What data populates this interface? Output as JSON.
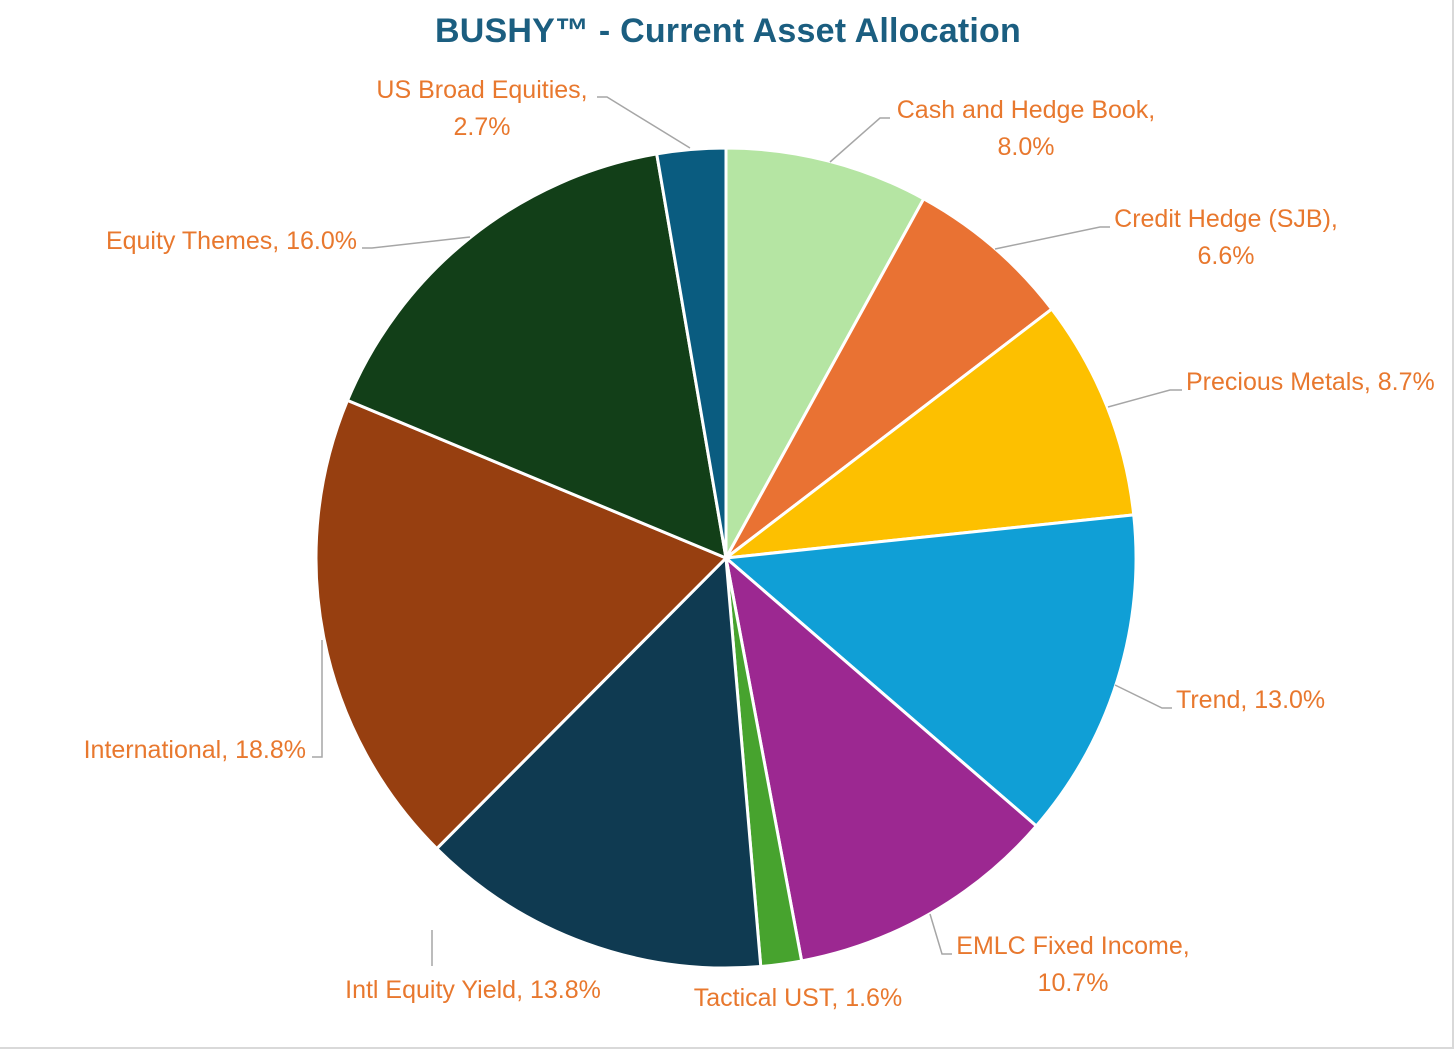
{
  "chart_data": {
    "type": "pie",
    "title": "BUSHY™ - Current Asset Allocation",
    "start_angle_deg": 0,
    "direction": "clockwise",
    "slices": [
      {
        "name": "Cash and Hedge Book",
        "value": 8.0,
        "label_lines": [
          "Cash and Hedge Book,",
          "8.0%"
        ],
        "color": "#b5e5a3"
      },
      {
        "name": "Credit Hedge (SJB)",
        "value": 6.6,
        "label_lines": [
          "Credit Hedge (SJB),",
          "6.6%"
        ],
        "color": "#e97233"
      },
      {
        "name": "Precious Metals",
        "value": 8.7,
        "label_lines": [
          "Precious Metals, 8.7%"
        ],
        "color": "#fdc000"
      },
      {
        "name": "Trend",
        "value": 13.0,
        "label_lines": [
          "Trend, 13.0%"
        ],
        "color": "#109fd6"
      },
      {
        "name": "EMLC Fixed Income",
        "value": 10.7,
        "label_lines": [
          "EMLC Fixed Income,",
          "10.7%"
        ],
        "color": "#9c2891"
      },
      {
        "name": "Tactical UST",
        "value": 1.6,
        "label_lines": [
          "Tactical UST, 1.6%"
        ],
        "color": "#47a32e"
      },
      {
        "name": "Intl Equity Yield",
        "value": 13.8,
        "label_lines": [
          "Intl Equity Yield, 13.8%"
        ],
        "color": "#0f3a51"
      },
      {
        "name": "International",
        "value": 18.8,
        "label_lines": [
          "International, 18.8%"
        ],
        "color": "#973f10"
      },
      {
        "name": "Equity Themes",
        "value": 16.0,
        "label_lines": [
          "Equity Themes, 16.0%"
        ],
        "color": "#123f18"
      },
      {
        "name": "US Broad Equities",
        "value": 2.7,
        "label_lines": [
          "US Broad Equities,",
          "2.7%"
        ],
        "color": "#0a5c80"
      }
    ],
    "slice_border_color": "#ffffff",
    "label_color": "#e8782e",
    "leader_line_color": "#a6a6a6",
    "title_color": "#1b5e80"
  }
}
